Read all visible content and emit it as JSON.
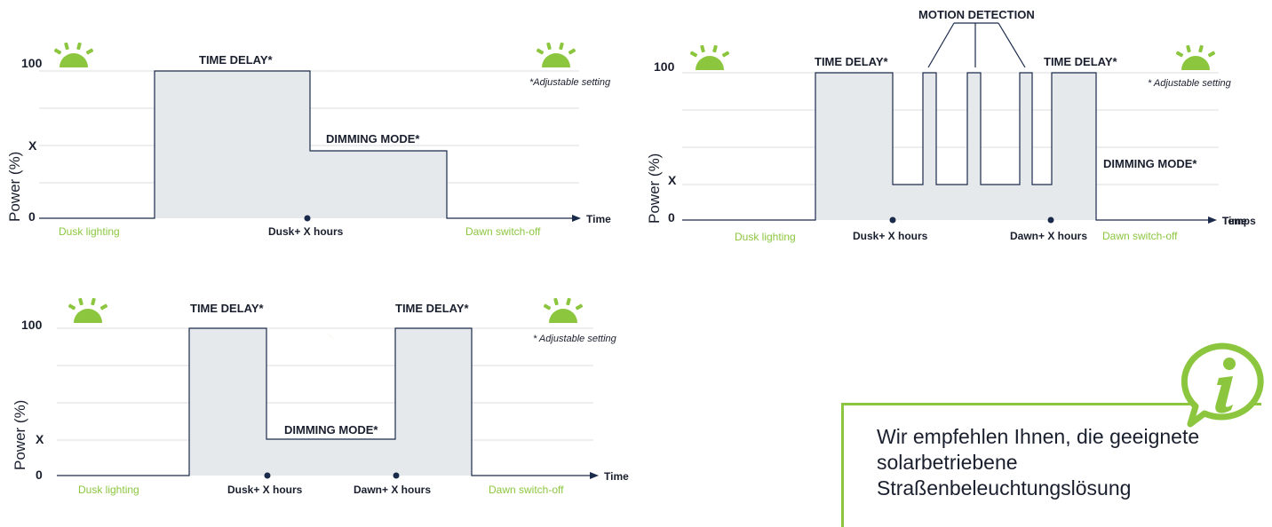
{
  "colors": {
    "accent": "#8cc63f",
    "fill": "#e6e9ec",
    "text": "#1a1f2e",
    "grid": "#d9dde2"
  },
  "chart_data": [
    {
      "type": "area",
      "ylabel": "Power (%)",
      "y_ticks": [
        "100",
        "X",
        "0"
      ],
      "x_axis_label": "Time",
      "adjustable_note": "*Adjustable setting",
      "x_markers": [
        "Dusk+ X hours"
      ],
      "green_labels": [
        "Dusk lighting",
        "Dawn switch-off"
      ],
      "annotations": [
        "TIME DELAY*",
        "DIMMING MODE*"
      ],
      "icons": [
        "sun-icon",
        "moon-icon",
        "sun-icon"
      ],
      "profile": [
        [
          "0",
          "0"
        ],
        [
          "Time delay on",
          "100"
        ],
        [
          "Time delay end",
          "100"
        ],
        [
          "Dimming",
          "X"
        ],
        [
          "Dimming end",
          "X"
        ],
        [
          "Dawn switch-off",
          "0"
        ]
      ]
    },
    {
      "type": "area",
      "ylabel": "Power (%)",
      "y_ticks": [
        "100",
        "X",
        "0"
      ],
      "x_axis_label": "Temps",
      "x_axis_label_overlap": "Time",
      "adjustable_note": "* Adjustable setting",
      "x_markers": [
        "Dusk+ X hours",
        "Dawn+ X hours"
      ],
      "green_labels": [
        "Dusk lighting",
        "Dawn switch-off"
      ],
      "annotations": [
        "TIME DELAY*",
        "TIME DELAY*",
        "DIMMING MODE*",
        "MOTION DETECTION"
      ],
      "icons": [
        "sun-icon",
        "moon-icon",
        "sun-icon"
      ],
      "profile": [
        [
          "0",
          "0"
        ],
        [
          "Time delay",
          "100"
        ],
        [
          "Dimming",
          "X"
        ],
        [
          "Motion pulse",
          "100"
        ],
        [
          "Dimming",
          "X"
        ],
        [
          "Motion pulse",
          "100"
        ],
        [
          "Dimming",
          "X"
        ],
        [
          "Motion pulse",
          "100"
        ],
        [
          "Dimming",
          "X"
        ],
        [
          "Time delay",
          "100"
        ],
        [
          "Dawn switch-off",
          "0"
        ]
      ]
    },
    {
      "type": "area",
      "ylabel": "Power (%)",
      "y_ticks": [
        "100",
        "X",
        "0"
      ],
      "x_axis_label": "Time",
      "adjustable_note": "* Adjustable setting",
      "x_markers": [
        "Dusk+ X hours",
        "Dawn+ X hours"
      ],
      "green_labels": [
        "Dusk lighting",
        "Dawn switch-off"
      ],
      "annotations": [
        "TIME DELAY*",
        "TIME DELAY*",
        "DIMMING MODE*"
      ],
      "icons": [
        "sun-icon",
        "moon-icon",
        "sun-icon"
      ],
      "profile": [
        [
          "0",
          "0"
        ],
        [
          "Time delay",
          "100"
        ],
        [
          "Dimming",
          "X"
        ],
        [
          "Time delay",
          "100"
        ],
        [
          "Dawn switch-off",
          "0"
        ]
      ]
    }
  ],
  "info": {
    "icon": "info-speech-bubble-icon",
    "text": "Wir empfehlen Ihnen, die geeignete solarbetriebene Straßenbeleuchtungslösung"
  }
}
